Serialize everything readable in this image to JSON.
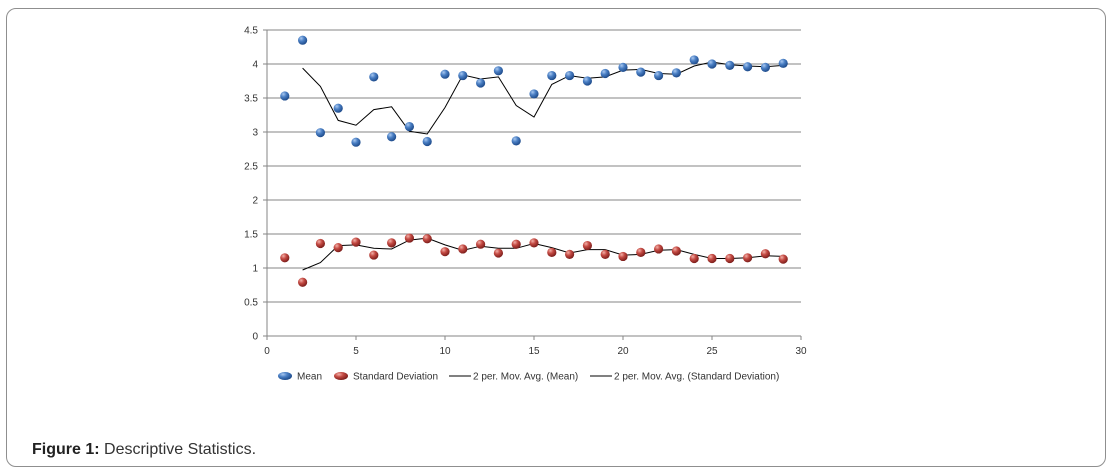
{
  "caption": {
    "label": "Figure 1:",
    "text": " Descriptive Statistics."
  },
  "chart_data": {
    "type": "scatter",
    "title": "",
    "xlabel": "",
    "ylabel": "",
    "xlim": [
      0,
      30
    ],
    "ylim": [
      0,
      4.5
    ],
    "x_ticks": [
      0,
      5,
      10,
      15,
      20,
      25,
      30
    ],
    "y_ticks": [
      0,
      0.5,
      1,
      1.5,
      2,
      2.5,
      3,
      3.5,
      4,
      4.5
    ],
    "grid": "horizontal",
    "legend": "bottom",
    "series": [
      {
        "name": "Mean",
        "kind": "points",
        "color": "#3b6fb6",
        "x": [
          1,
          2,
          3,
          4,
          5,
          6,
          7,
          8,
          9,
          10,
          11,
          12,
          13,
          14,
          15,
          16,
          17,
          18,
          19,
          20,
          21,
          22,
          23,
          24,
          25,
          26,
          27,
          28,
          29
        ],
        "values": [
          3.53,
          4.35,
          2.99,
          3.35,
          2.85,
          3.81,
          2.93,
          3.08,
          2.86,
          3.85,
          3.83,
          3.72,
          3.9,
          2.87,
          3.56,
          3.83,
          3.83,
          3.75,
          3.86,
          3.95,
          3.88,
          3.83,
          3.87,
          4.06,
          4.0,
          3.98,
          3.96,
          3.95,
          4.01
        ]
      },
      {
        "name": "Standard Deviation",
        "kind": "points",
        "color": "#b53b3b",
        "x": [
          1,
          2,
          3,
          4,
          5,
          6,
          7,
          8,
          9,
          10,
          11,
          12,
          13,
          14,
          15,
          16,
          17,
          18,
          19,
          20,
          21,
          22,
          23,
          24,
          25,
          26,
          27,
          28,
          29
        ],
        "values": [
          1.15,
          0.79,
          1.36,
          1.3,
          1.38,
          1.19,
          1.37,
          1.44,
          1.43,
          1.24,
          1.28,
          1.35,
          1.22,
          1.35,
          1.37,
          1.23,
          1.2,
          1.33,
          1.2,
          1.17,
          1.23,
          1.28,
          1.25,
          1.14,
          1.14,
          1.14,
          1.15,
          1.21,
          1.13
        ]
      },
      {
        "name": "2 per. Mov. Avg. (Mean)",
        "kind": "line",
        "color": "#000000",
        "x": [
          2,
          3,
          4,
          5,
          6,
          7,
          8,
          9,
          10,
          11,
          12,
          13,
          14,
          15,
          16,
          17,
          18,
          19,
          20,
          21,
          22,
          23,
          24,
          25,
          26,
          27,
          28,
          29
        ],
        "values": [
          3.94,
          3.67,
          3.17,
          3.1,
          3.33,
          3.37,
          3.01,
          2.97,
          3.36,
          3.84,
          3.78,
          3.81,
          3.39,
          3.22,
          3.7,
          3.83,
          3.79,
          3.81,
          3.91,
          3.92,
          3.86,
          3.85,
          3.97,
          4.03,
          3.99,
          3.97,
          3.96,
          3.98
        ]
      },
      {
        "name": "2 per. Mov. Avg. (Standard Deviation)",
        "kind": "line",
        "color": "#000000",
        "x": [
          2,
          3,
          4,
          5,
          6,
          7,
          8,
          9,
          10,
          11,
          12,
          13,
          14,
          15,
          16,
          17,
          18,
          19,
          20,
          21,
          22,
          23,
          24,
          25,
          26,
          27,
          28,
          29
        ],
        "values": [
          0.97,
          1.08,
          1.33,
          1.34,
          1.29,
          1.28,
          1.41,
          1.44,
          1.34,
          1.26,
          1.32,
          1.29,
          1.29,
          1.36,
          1.3,
          1.22,
          1.27,
          1.27,
          1.19,
          1.2,
          1.26,
          1.27,
          1.2,
          1.14,
          1.14,
          1.15,
          1.18,
          1.17
        ]
      }
    ]
  }
}
